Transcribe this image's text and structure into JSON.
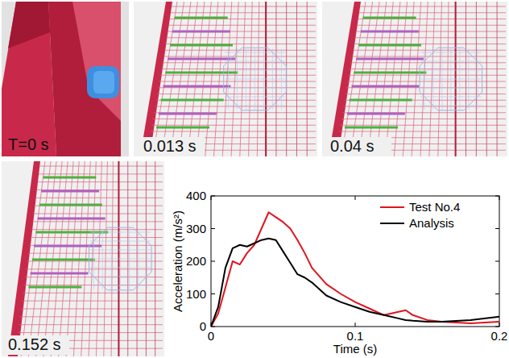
{
  "panels": [
    {
      "label": "T=0 s"
    },
    {
      "label": "0.013 s"
    },
    {
      "label": "0.04 s"
    },
    {
      "label": "0.152 s"
    }
  ],
  "chart_data": {
    "type": "line",
    "x_label": "Time (s)",
    "y_label": "Acceleration (m/s²)",
    "x": [
      0,
      0.005,
      0.01,
      0.015,
      0.02,
      0.025,
      0.03,
      0.035,
      0.04,
      0.045,
      0.05,
      0.055,
      0.06,
      0.065,
      0.07,
      0.08,
      0.09,
      0.1,
      0.11,
      0.12,
      0.13,
      0.135,
      0.14,
      0.15,
      0.16,
      0.18,
      0.2
    ],
    "series": [
      {
        "name": "Test No.4",
        "color": "#e0141e",
        "values": [
          0,
          40,
          120,
          200,
          190,
          225,
          250,
          300,
          350,
          335,
          320,
          300,
          265,
          225,
          180,
          130,
          100,
          75,
          55,
          35,
          45,
          50,
          35,
          20,
          15,
          10,
          15
        ]
      },
      {
        "name": "Analysis",
        "color": "#000000",
        "values": [
          0,
          60,
          180,
          240,
          250,
          245,
          255,
          265,
          270,
          265,
          230,
          195,
          160,
          150,
          135,
          95,
          75,
          60,
          45,
          35,
          25,
          20,
          18,
          15,
          15,
          20,
          30
        ]
      }
    ],
    "xlim": [
      0,
      0.2
    ],
    "xticks": [
      0,
      0.1,
      0.2
    ],
    "ylim": [
      0,
      400
    ],
    "yticks": [
      0,
      100,
      200,
      300,
      400
    ],
    "grid": false,
    "legend": "upper right"
  }
}
